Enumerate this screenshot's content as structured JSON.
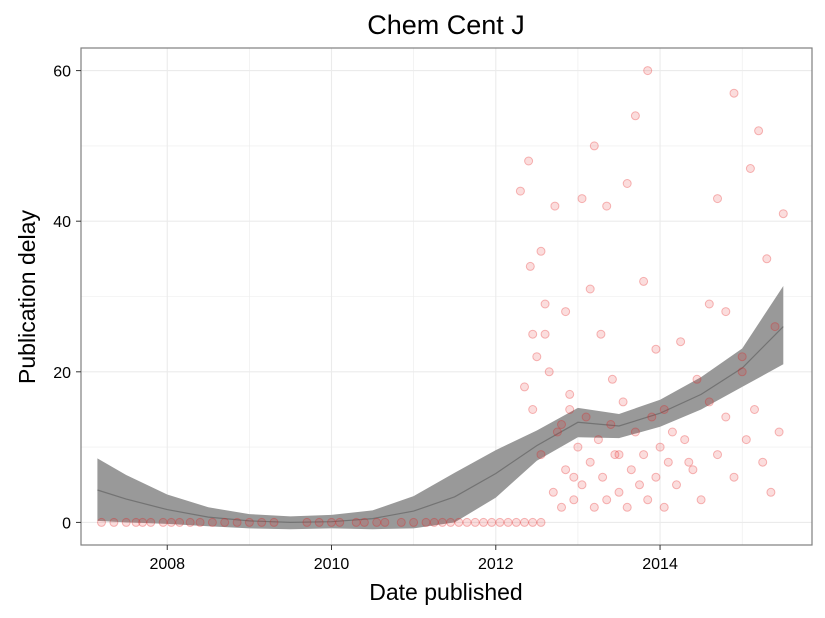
{
  "chart_data": {
    "type": "scatter",
    "title": "Chem Cent J",
    "xlabel": "Date published",
    "ylabel": "Publication delay",
    "xlim": [
      2006.95,
      2015.85
    ],
    "ylim": [
      -3,
      63
    ],
    "xticks": [
      2008,
      2010,
      2012,
      2014
    ],
    "yticks": [
      0,
      20,
      40,
      60
    ],
    "grid": true,
    "legend": "none",
    "colors": {
      "points": "#e41a1c",
      "ribbon": "#999999",
      "line": "#4d4d4d",
      "panel_border": "#7f7f7f",
      "grid": "#ebebeb"
    },
    "smooth": {
      "x": [
        2007.15,
        2007.5,
        2008.0,
        2008.5,
        2009.0,
        2009.5,
        2010.0,
        2010.5,
        2011.0,
        2011.5,
        2012.0,
        2012.5,
        2013.0,
        2013.5,
        2014.0,
        2014.5,
        2015.0,
        2015.5
      ],
      "fit": [
        4.3,
        3.1,
        1.7,
        0.7,
        0.2,
        0.0,
        0.1,
        0.5,
        1.5,
        3.4,
        6.5,
        10.2,
        13.3,
        12.8,
        14.5,
        17.0,
        20.5,
        26.0
      ],
      "lower": [
        0.2,
        0.0,
        -0.2,
        -0.5,
        -0.8,
        -0.9,
        -0.8,
        -0.9,
        -0.8,
        0.0,
        3.3,
        8.2,
        11.3,
        11.2,
        12.7,
        15.0,
        18.0,
        21.0
      ],
      "upper": [
        8.5,
        6.3,
        3.7,
        2.0,
        1.1,
        0.8,
        1.0,
        1.6,
        3.5,
        6.6,
        9.6,
        12.2,
        15.2,
        14.4,
        16.3,
        19.3,
        23.1,
        31.4
      ]
    },
    "series": [
      {
        "x": [
          2007.2,
          2007.35,
          2007.5,
          2007.62,
          2007.7,
          2007.8,
          2007.95,
          2008.05,
          2008.15,
          2008.28,
          2008.4,
          2008.55,
          2008.7,
          2008.85,
          2009.0,
          2009.15,
          2009.3,
          2009.7,
          2009.85,
          2010.0,
          2010.1,
          2010.3,
          2010.4,
          2010.55,
          2010.65,
          2010.85,
          2011.0,
          2011.15,
          2011.25,
          2011.35,
          2011.45,
          2011.55,
          2011.65,
          2011.75,
          2011.85,
          2011.95,
          2012.05,
          2012.15,
          2012.25,
          2012.35,
          2012.45,
          2012.55
        ],
        "y": [
          0,
          0,
          0,
          0,
          0,
          0,
          0,
          0,
          0,
          0,
          0,
          0,
          0,
          0,
          0,
          0,
          0,
          0,
          0,
          0,
          0,
          0,
          0,
          0,
          0,
          0,
          0,
          0,
          0,
          0,
          0,
          0,
          0,
          0,
          0,
          0,
          0,
          0,
          0,
          0,
          0,
          0
        ]
      },
      {
        "x": [
          2012.3,
          2012.4,
          2012.42,
          2012.45,
          2012.5,
          2012.55,
          2012.6,
          2012.65,
          2012.72,
          2012.8,
          2012.85,
          2012.9,
          2012.95,
          2013.05,
          2013.15,
          2013.2,
          2013.28,
          2013.35,
          2013.42,
          2013.5,
          2013.6,
          2013.7,
          2013.8,
          2013.85,
          2013.95,
          2014.05,
          2014.15,
          2014.25,
          2014.35,
          2014.45,
          2014.6,
          2014.7,
          2014.8,
          2014.9,
          2015.0,
          2015.1,
          2015.2,
          2015.3,
          2015.4,
          2015.5
        ],
        "y": [
          44,
          48,
          34,
          25,
          22,
          36,
          29,
          20,
          42,
          13,
          28,
          17,
          6,
          43,
          31,
          50,
          25,
          42,
          19,
          9,
          45,
          54,
          32,
          60,
          23,
          15,
          12,
          24,
          8,
          19,
          29,
          43,
          28,
          57,
          22,
          47,
          52,
          35,
          26,
          41
        ]
      },
      {
        "x": [
          2012.35,
          2012.45,
          2012.55,
          2012.6,
          2012.7,
          2012.75,
          2012.8,
          2012.85,
          2012.9,
          2012.95,
          2013.0,
          2013.05,
          2013.1,
          2013.15,
          2013.2,
          2013.25,
          2013.3,
          2013.35,
          2013.4,
          2013.45,
          2013.5,
          2013.55,
          2013.6,
          2013.65,
          2013.7,
          2013.75,
          2013.8,
          2013.85,
          2013.9,
          2013.95,
          2014.0,
          2014.05,
          2014.1,
          2014.2,
          2014.3,
          2014.4,
          2014.5,
          2014.6,
          2014.7,
          2014.8,
          2014.9,
          2015.0,
          2015.05,
          2015.15,
          2015.25,
          2015.35,
          2015.45
        ],
        "y": [
          18,
          15,
          9,
          25,
          4,
          12,
          2,
          7,
          15,
          3,
          10,
          5,
          14,
          8,
          2,
          11,
          6,
          3,
          13,
          9,
          4,
          16,
          2,
          7,
          12,
          5,
          9,
          3,
          14,
          6,
          10,
          2,
          8,
          5,
          11,
          7,
          3,
          16,
          9,
          14,
          6,
          20,
          11,
          15,
          8,
          4,
          12
        ]
      }
    ]
  }
}
